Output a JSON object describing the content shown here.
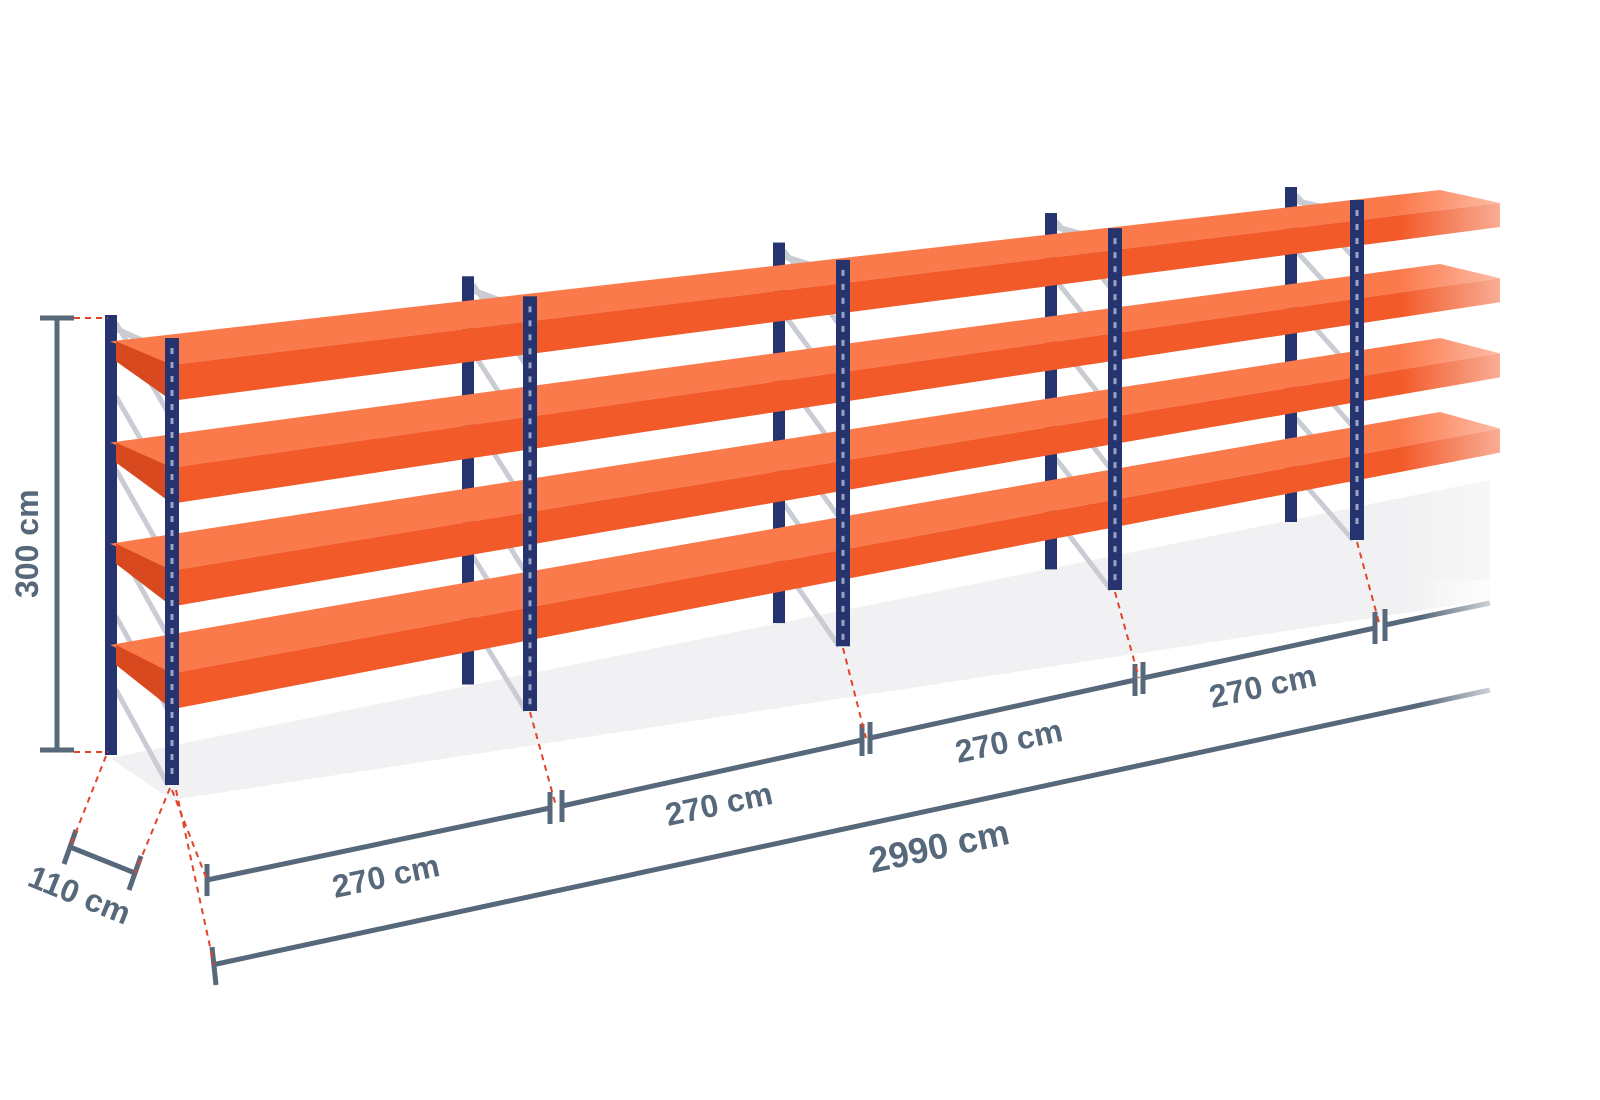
{
  "dimensions": {
    "height_label": "300 cm",
    "depth_label": "110 cm",
    "bay_labels": [
      "270 cm",
      "270 cm",
      "270 cm",
      "270 cm"
    ],
    "total_label": "2990 cm"
  },
  "colors": {
    "shelf": "#f25a2a",
    "shelf_top": "#fb7a4c",
    "upright": "#25346e",
    "dimension_line": "#56687a",
    "leader_dash": "#e0452a",
    "brace": "#c9ccd2"
  },
  "shelf_levels": 4,
  "bays_visible": 5
}
